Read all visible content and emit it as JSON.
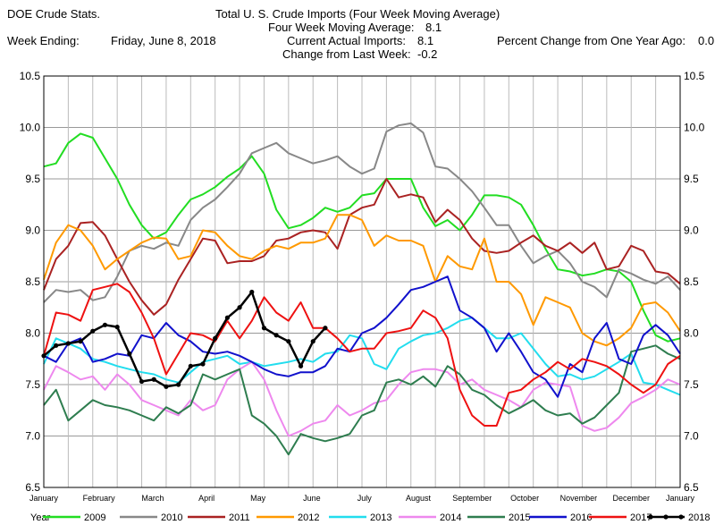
{
  "header": {
    "source": "DOE Crude Stats.",
    "title": "Total U.  S. Crude Imports (Four Week Moving Average)",
    "four_week_label": "Four Week Moving Average:",
    "four_week_value": "8.1",
    "week_ending_label": "Week Ending:",
    "week_ending_value": "Friday, June 8, 2018",
    "current_label": "Current Actual Imports:",
    "current_value": "8.1",
    "pct_label": "Percent Change from One Year Ago:",
    "pct_value": "0.0",
    "change_label": "Change from Last Week:",
    "change_value": "-0.2"
  },
  "chart_data": {
    "type": "line",
    "title": "Total U.  S. Crude Imports (Four Week Moving Average)",
    "xlabel": "",
    "ylabel": "",
    "x_unit": "week of year",
    "xlim": [
      1,
      53
    ],
    "ylim": [
      6.5,
      10.5
    ],
    "y_ticks": [
      "6.5",
      "7.0",
      "7.5",
      "8.0",
      "8.5",
      "9.0",
      "9.5",
      "10.0",
      "10.5"
    ],
    "y_tick_values": [
      6.5,
      7.0,
      7.5,
      8.0,
      8.5,
      9.0,
      9.5,
      10.0,
      10.5
    ],
    "x_ticks": [
      {
        "label": "January",
        "week": 1
      },
      {
        "label": "February",
        "week": 5.5
      },
      {
        "label": "March",
        "week": 9.9
      },
      {
        "label": "April",
        "week": 14.3
      },
      {
        "label": "May",
        "week": 18.5
      },
      {
        "label": "June",
        "week": 22.9
      },
      {
        "label": "July",
        "week": 27.2
      },
      {
        "label": "August",
        "week": 31.6
      },
      {
        "label": "September",
        "week": 36
      },
      {
        "label": "October",
        "week": 40.3
      },
      {
        "label": "November",
        "week": 44.7
      },
      {
        "label": "December",
        "week": 49
      },
      {
        "label": "January",
        "week": 53
      }
    ],
    "grid": true,
    "legend_title": "Year",
    "legend_position": "bottom",
    "series": [
      {
        "name": "2009",
        "color": "#22dd22",
        "values": [
          9.62,
          9.65,
          9.85,
          9.94,
          9.9,
          9.7,
          9.5,
          9.25,
          9.05,
          8.92,
          8.98,
          9.15,
          9.3,
          9.35,
          9.42,
          9.52,
          9.6,
          9.72,
          9.55,
          9.2,
          9.02,
          9.05,
          9.12,
          9.22,
          9.18,
          9.22,
          9.34,
          9.36,
          9.5,
          9.5,
          9.5,
          9.22,
          9.04,
          9.1,
          9.0,
          9.15,
          9.34,
          9.34,
          9.32,
          9.25,
          9.05,
          8.82,
          8.62,
          8.6,
          8.56,
          8.58,
          8.62,
          8.6,
          8.5,
          8.22,
          7.98,
          7.92,
          7.95
        ]
      },
      {
        "name": "2010",
        "color": "#888888",
        "values": [
          8.3,
          8.42,
          8.4,
          8.42,
          8.32,
          8.35,
          8.55,
          8.8,
          8.85,
          8.82,
          8.88,
          8.85,
          9.1,
          9.22,
          9.3,
          9.42,
          9.55,
          9.75,
          9.8,
          9.85,
          9.75,
          9.7,
          9.65,
          9.68,
          9.72,
          9.62,
          9.55,
          9.6,
          9.96,
          10.02,
          10.04,
          9.95,
          9.62,
          9.6,
          9.5,
          9.38,
          9.22,
          9.05,
          9.05,
          8.85,
          8.68,
          8.75,
          8.8,
          8.68,
          8.5,
          8.45,
          8.35,
          8.62,
          8.58,
          8.52,
          8.48,
          8.55,
          8.42
        ]
      },
      {
        "name": "2011",
        "color": "#aa2222",
        "values": [
          8.42,
          8.72,
          8.85,
          9.07,
          9.08,
          8.95,
          8.72,
          8.5,
          8.32,
          8.18,
          8.28,
          8.52,
          8.72,
          8.92,
          8.9,
          8.68,
          8.7,
          8.7,
          8.75,
          8.9,
          8.92,
          8.98,
          9.0,
          8.98,
          8.82,
          9.15,
          9.22,
          9.25,
          9.5,
          9.32,
          9.35,
          9.32,
          9.08,
          9.2,
          9.1,
          8.92,
          8.8,
          8.78,
          8.8,
          8.88,
          8.95,
          8.85,
          8.8,
          8.88,
          8.78,
          8.88,
          8.62,
          8.65,
          8.85,
          8.8,
          8.6,
          8.58,
          8.48
        ]
      },
      {
        "name": "2012",
        "color": "#ff9900",
        "values": [
          8.52,
          8.88,
          9.05,
          9.0,
          8.85,
          8.62,
          8.72,
          8.8,
          8.88,
          8.93,
          8.92,
          8.72,
          8.75,
          9.0,
          8.98,
          8.85,
          8.75,
          8.72,
          8.8,
          8.85,
          8.82,
          8.88,
          8.88,
          8.92,
          9.15,
          9.15,
          9.1,
          8.85,
          8.95,
          8.9,
          8.9,
          8.85,
          8.5,
          8.75,
          8.65,
          8.62,
          8.92,
          8.5,
          8.5,
          8.38,
          8.08,
          8.35,
          8.3,
          8.25,
          8.0,
          7.92,
          7.88,
          7.95,
          8.05,
          8.28,
          8.3,
          8.2,
          8.02
        ]
      },
      {
        "name": "2013",
        "color": "#22ddee",
        "values": [
          7.7,
          7.95,
          7.9,
          7.85,
          7.75,
          7.72,
          7.68,
          7.65,
          7.62,
          7.6,
          7.55,
          7.52,
          7.62,
          7.72,
          7.75,
          7.78,
          7.7,
          7.72,
          7.68,
          7.7,
          7.72,
          7.75,
          7.72,
          7.8,
          7.82,
          7.98,
          7.95,
          7.7,
          7.65,
          7.85,
          7.92,
          7.98,
          8.0,
          8.05,
          8.12,
          8.15,
          8.05,
          7.95,
          7.95,
          8.0,
          7.85,
          7.7,
          7.58,
          7.6,
          7.55,
          7.58,
          7.65,
          7.72,
          7.8,
          7.52,
          7.5,
          7.45,
          7.4
        ]
      },
      {
        "name": "2014",
        "color": "#ee88ee",
        "values": [
          7.45,
          7.68,
          7.62,
          7.55,
          7.58,
          7.45,
          7.6,
          7.5,
          7.35,
          7.3,
          7.25,
          7.2,
          7.35,
          7.25,
          7.3,
          7.55,
          7.65,
          7.72,
          7.55,
          7.25,
          7.0,
          7.05,
          7.12,
          7.15,
          7.3,
          7.2,
          7.25,
          7.32,
          7.35,
          7.5,
          7.62,
          7.65,
          7.65,
          7.62,
          7.5,
          7.55,
          7.45,
          7.4,
          7.35,
          7.28,
          7.45,
          7.52,
          7.5,
          7.48,
          7.1,
          7.05,
          7.08,
          7.18,
          7.32,
          7.38,
          7.45,
          7.55,
          7.5
        ]
      },
      {
        "name": "2015",
        "color": "#2e7d4f",
        "values": [
          7.3,
          7.45,
          7.15,
          7.25,
          7.35,
          7.3,
          7.28,
          7.25,
          7.2,
          7.15,
          7.28,
          7.22,
          7.3,
          7.6,
          7.55,
          7.6,
          7.65,
          7.2,
          7.12,
          7.0,
          6.82,
          7.02,
          6.98,
          6.95,
          6.98,
          7.02,
          7.2,
          7.25,
          7.52,
          7.55,
          7.5,
          7.58,
          7.48,
          7.68,
          7.6,
          7.45,
          7.4,
          7.3,
          7.22,
          7.28,
          7.35,
          7.25,
          7.2,
          7.22,
          7.12,
          7.18,
          7.3,
          7.42,
          7.82,
          7.85,
          7.88,
          7.8,
          7.75
        ]
      },
      {
        "name": "2016",
        "color": "#1111cc",
        "values": [
          7.78,
          7.72,
          7.9,
          7.95,
          7.72,
          7.75,
          7.8,
          7.78,
          7.98,
          7.95,
          8.1,
          7.98,
          7.92,
          7.82,
          7.8,
          7.82,
          7.78,
          7.72,
          7.65,
          7.6,
          7.58,
          7.62,
          7.62,
          7.68,
          7.85,
          7.82,
          8.0,
          8.05,
          8.15,
          8.28,
          8.42,
          8.45,
          8.5,
          8.55,
          8.22,
          8.15,
          8.05,
          7.82,
          8.0,
          7.82,
          7.62,
          7.55,
          7.38,
          7.7,
          7.62,
          7.95,
          8.1,
          7.75,
          7.7,
          7.98,
          8.08,
          7.98,
          7.8
        ]
      },
      {
        "name": "2017",
        "color": "#ee1111",
        "values": [
          7.78,
          8.2,
          8.18,
          8.12,
          8.42,
          8.45,
          8.48,
          8.4,
          8.2,
          7.95,
          7.6,
          7.8,
          8.0,
          7.98,
          7.92,
          8.12,
          7.95,
          8.12,
          8.35,
          8.2,
          8.12,
          8.3,
          8.05,
          8.05,
          7.95,
          7.82,
          7.85,
          7.85,
          8.0,
          8.02,
          8.05,
          8.22,
          8.15,
          7.95,
          7.45,
          7.2,
          7.1,
          7.1,
          7.42,
          7.45,
          7.55,
          7.62,
          7.72,
          7.65,
          7.75,
          7.72,
          7.68,
          7.6,
          7.5,
          7.42,
          7.5,
          7.7,
          7.78
        ]
      },
      {
        "name": "2018",
        "color": "#000000",
        "markers": true,
        "values": [
          7.78,
          7.88,
          7.9,
          7.92,
          8.02,
          8.08,
          8.06,
          7.8,
          7.53,
          7.55,
          7.48,
          7.5,
          7.68,
          7.7,
          7.95,
          8.15,
          8.25,
          8.4,
          8.05,
          7.98,
          7.92,
          7.68,
          7.92,
          8.05
        ]
      }
    ]
  }
}
